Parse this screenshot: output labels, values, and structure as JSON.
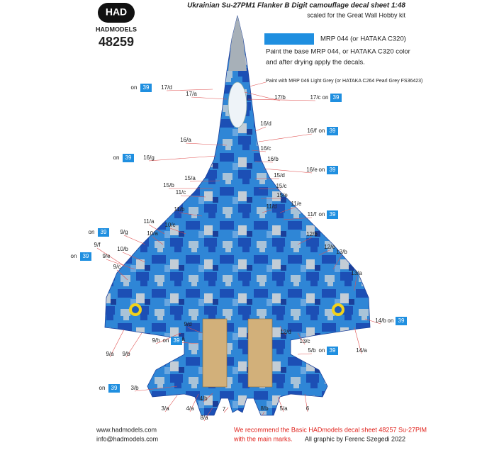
{
  "header": {
    "logo": "HAD",
    "brand": "HADMODELS",
    "number": "48259",
    "title": "Ukrainian Su-27PM1 Flanker B Digit camouflage decal sheet 1:48",
    "subtitle": "scaled for the Great Wall Hobby kit"
  },
  "legend": {
    "paint": "MRP 044 (or HATAKA C320)",
    "note": [
      "Paint the base MRP 044, or HATAKA C320 color",
      "and after drying apply the decals."
    ],
    "grey_note": "Paint with MRP 046 Light Grey (or HATAKA C264 Pearl Grey FS36423)"
  },
  "on_word": "on",
  "callouts": [
    {
      "label": "17/d",
      "code": "39"
    },
    {
      "label": "17/a"
    },
    {
      "label": "17/b"
    },
    {
      "label": "17/c",
      "code": "39"
    },
    {
      "label": "16/d"
    },
    {
      "label": "16/f",
      "code": "39"
    },
    {
      "label": "16/a"
    },
    {
      "label": "16/g",
      "code": "39"
    },
    {
      "label": "16/c"
    },
    {
      "label": "16/b"
    },
    {
      "label": "16/e",
      "code": "39"
    },
    {
      "label": "15/a"
    },
    {
      "label": "15/d"
    },
    {
      "label": "15/b"
    },
    {
      "label": "15/c"
    },
    {
      "label": "15/e"
    },
    {
      "label": "11/c"
    },
    {
      "label": "11/e"
    },
    {
      "label": "11/d"
    },
    {
      "label": "11/b"
    },
    {
      "label": "11/f",
      "code": "39"
    },
    {
      "label": "11/a"
    },
    {
      "label": "10/c"
    },
    {
      "label": "10/a"
    },
    {
      "label": "9/g",
      "code": "39"
    },
    {
      "label": "12/b"
    },
    {
      "label": "9/f"
    },
    {
      "label": "10/b"
    },
    {
      "label": "12/e"
    },
    {
      "label": "9/e",
      "code": "39"
    },
    {
      "label": "13/b"
    },
    {
      "label": "9/c"
    },
    {
      "label": "13/a"
    },
    {
      "label": "14/b",
      "code": "39"
    },
    {
      "label": "14/a"
    },
    {
      "label": "9/d"
    },
    {
      "label": "12/d"
    },
    {
      "label": "12/a"
    },
    {
      "label": "13/c"
    },
    {
      "label": "9/h",
      "code": "39"
    },
    {
      "label": "9/a"
    },
    {
      "label": "9/b"
    },
    {
      "label": "5/b",
      "code": "39"
    },
    {
      "label": "3/b",
      "code": "39"
    },
    {
      "label": "3/a"
    },
    {
      "label": "4/a"
    },
    {
      "label": "4/b"
    },
    {
      "label": "7"
    },
    {
      "label": "8/a"
    },
    {
      "label": "8/b"
    },
    {
      "label": "5/a"
    },
    {
      "label": "6"
    }
  ],
  "footer": {
    "web": "www.hadmodels.com",
    "email": "info@hadmodels.com",
    "recommend": [
      "We recommend the Basic HADmodels decal sheet 48257 Su-27PIM",
      "with the main marks."
    ],
    "credit": "All graphic by Ferenc Szegedi 2022"
  }
}
